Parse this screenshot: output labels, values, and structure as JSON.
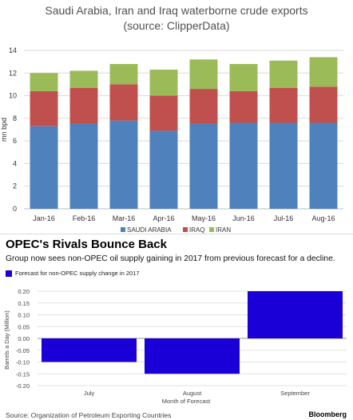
{
  "chart_data": [
    {
      "type": "bar",
      "stacked": true,
      "title_lines": [
        "Saudi Arabia, Iran and Iraq waterborne crude exports",
        "(source: ClipperData)"
      ],
      "ylabel": "mn bpd",
      "ylim": [
        0,
        14
      ],
      "yticks": [
        "0",
        "2",
        "4",
        "6",
        "8",
        "10",
        "12",
        "14"
      ],
      "grid": true,
      "legend_position": "bottom",
      "categories": [
        "Jan-16",
        "Feb-16",
        "Mar-16",
        "Apr-16",
        "May-16",
        "Jun-16",
        "Jul-16",
        "Aug-16"
      ],
      "series": [
        {
          "name": "SAUDI ARABIA",
          "color": "#4f81bd",
          "values": [
            7.3,
            7.5,
            7.8,
            6.9,
            7.5,
            7.6,
            7.6,
            7.6
          ]
        },
        {
          "name": "IRAQ",
          "color": "#c0504d",
          "values": [
            3.1,
            3.2,
            3.2,
            3.1,
            3.1,
            2.8,
            3.1,
            3.2
          ]
        },
        {
          "name": "IRAN",
          "color": "#9bbb59",
          "values": [
            1.6,
            1.5,
            1.8,
            2.3,
            2.6,
            2.4,
            2.4,
            2.6
          ]
        }
      ]
    },
    {
      "type": "bar",
      "title": "OPEC's Rivals Bounce Back",
      "subtitle": "Group now sees non-OPEC oil supply gaining in 2017 from previous forecast for a decline.",
      "legend_label": "Forecast for non-OPEC supply change in 2017",
      "color": "#1a00d6",
      "categories": [
        "July",
        "August",
        "September"
      ],
      "values": [
        -0.1,
        -0.15,
        0.2
      ],
      "xlabel": "Month of Forecast",
      "ylabel": "Barrels a Day (Million)",
      "ylim": [
        -0.2,
        0.2
      ],
      "yticks": [
        "0.20",
        "0.15",
        "0.10",
        "0.05",
        "0.00",
        "-0.05",
        "-0.10",
        "-0.15",
        "-0.20"
      ],
      "source": "Source: Organization of Petroleum Exporting Countries",
      "brand": "Bloomberg"
    }
  ]
}
